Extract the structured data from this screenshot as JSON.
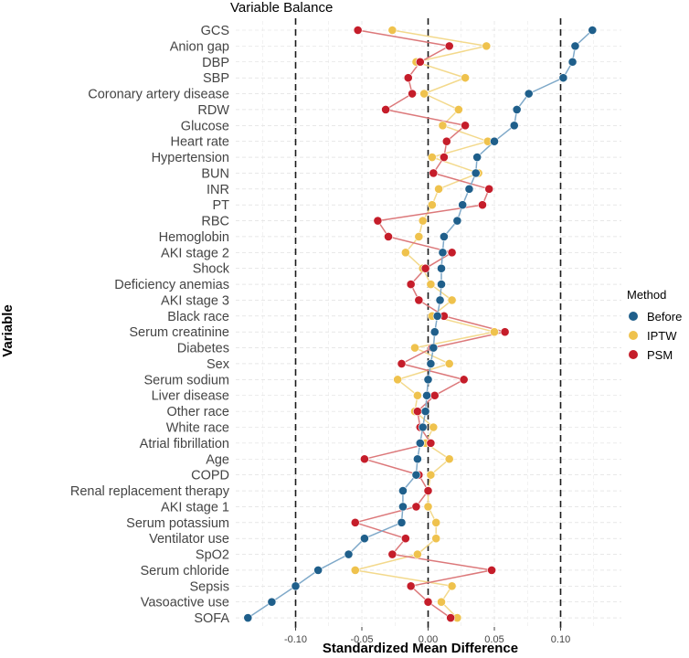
{
  "chart_data": {
    "type": "scatter",
    "title": "Variable Balance",
    "xlabel": "Standardized Mean Difference",
    "ylabel": "Variable",
    "xlim": [
      -0.135,
      0.13
    ],
    "xticks": [
      -0.1,
      -0.05,
      0.0,
      0.05,
      0.1
    ],
    "xtick_labels": [
      "-0.10",
      "-0.05",
      "0.00",
      "0.05",
      "0.10"
    ],
    "reference_lines": [
      -0.1,
      0.0,
      0.1
    ],
    "grid": true,
    "legend_title": "Method",
    "legend_position": "right",
    "categories": [
      "GCS",
      "Anion gap",
      "DBP",
      "SBP",
      "Coronary artery disease",
      "RDW",
      "Glucose",
      "Heart rate",
      "Hypertension",
      "BUN",
      "INR",
      "PT",
      "RBC",
      "Hemoglobin",
      "AKI stage 2",
      "Shock",
      "Deficiency anemias",
      "AKI stage 3",
      "Black race",
      "Serum creatinine",
      "Diabetes",
      "Sex",
      "Serum sodium",
      "Liver disease",
      "Other race",
      "White race",
      "Atrial fibrillation",
      "Age",
      "COPD",
      "Renal replacement therapy",
      "AKI stage 1",
      "Serum potassium",
      "Ventilator use",
      "SpO2",
      "Serum chloride",
      "Sepsis",
      "Vasoactive use",
      "SOFA"
    ],
    "series": [
      {
        "name": "Before",
        "color": "#1f5f8b",
        "line_color": "#7fa9c9",
        "values": [
          0.124,
          0.111,
          0.109,
          0.102,
          0.076,
          0.067,
          0.065,
          0.05,
          0.037,
          0.036,
          0.031,
          0.026,
          0.022,
          0.012,
          0.011,
          0.01,
          0.01,
          0.009,
          0.007,
          0.005,
          0.004,
          0.002,
          0.0,
          -0.001,
          -0.002,
          -0.004,
          -0.006,
          -0.008,
          -0.009,
          -0.019,
          -0.019,
          -0.02,
          -0.048,
          -0.06,
          -0.083,
          -0.1,
          -0.118,
          -0.136
        ]
      },
      {
        "name": "IPTW",
        "color": "#efc24d",
        "line_color": "#f3d98c",
        "values": [
          -0.027,
          0.044,
          -0.009,
          0.028,
          -0.003,
          0.023,
          0.011,
          0.045,
          0.003,
          0.038,
          0.008,
          0.003,
          -0.004,
          -0.007,
          -0.017,
          -0.004,
          0.002,
          0.018,
          0.003,
          0.05,
          -0.01,
          0.016,
          -0.023,
          -0.008,
          -0.01,
          0.004,
          -0.002,
          0.016,
          0.002,
          0.0,
          0.0,
          0.006,
          0.006,
          -0.008,
          -0.055,
          0.018,
          0.01,
          0.022
        ]
      },
      {
        "name": "PSM",
        "color": "#c51d2a",
        "line_color": "#dc787a",
        "values": [
          -0.053,
          0.016,
          -0.006,
          -0.015,
          -0.012,
          -0.032,
          0.028,
          0.014,
          0.012,
          0.004,
          0.046,
          0.041,
          -0.038,
          -0.03,
          0.018,
          -0.002,
          -0.013,
          -0.007,
          0.012,
          0.058,
          0.003,
          -0.02,
          0.027,
          0.005,
          -0.008,
          -0.006,
          0.002,
          -0.048,
          -0.007,
          0.0,
          -0.009,
          -0.055,
          -0.017,
          -0.027,
          0.048,
          -0.013,
          0.0,
          0.017
        ]
      }
    ]
  }
}
